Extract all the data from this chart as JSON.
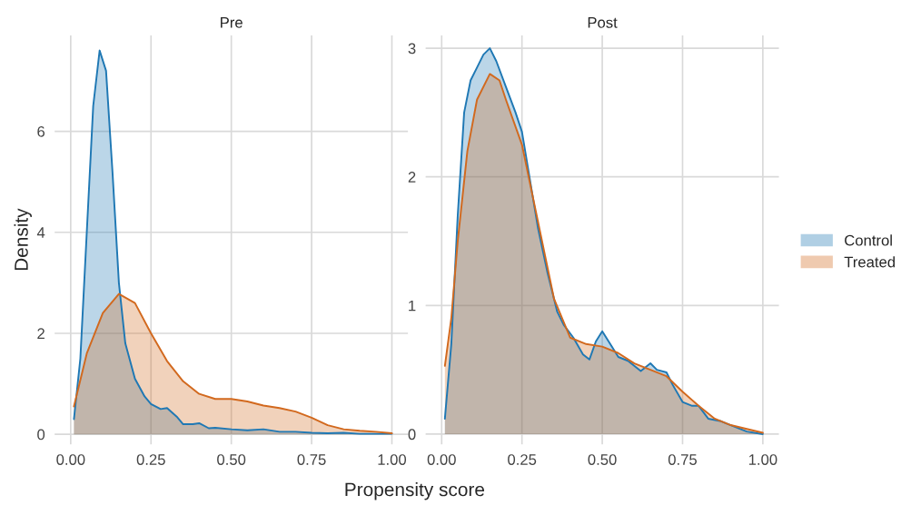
{
  "chart_data": [
    {
      "type": "area",
      "title": "Pre",
      "ylabel": "Density",
      "xlabel": "Propensity score",
      "xlim": [
        -0.05,
        1.05
      ],
      "ylim": [
        -0.2,
        7.9
      ],
      "xticks": [
        {
          "value": 0,
          "label": "0.00"
        },
        {
          "value": 0.25,
          "label": "0.25"
        },
        {
          "value": 0.5,
          "label": "0.50"
        },
        {
          "value": 0.75,
          "label": "0.75"
        },
        {
          "value": 1,
          "label": "1.00"
        }
      ],
      "yticks": [
        0,
        2,
        4,
        6
      ],
      "grid": true,
      "legend": "right",
      "series": [
        {
          "name": "Control",
          "color": "#1f78b4",
          "x": [
            0.01,
            0.03,
            0.05,
            0.07,
            0.09,
            0.11,
            0.13,
            0.15,
            0.17,
            0.2,
            0.23,
            0.25,
            0.28,
            0.3,
            0.33,
            0.35,
            0.38,
            0.4,
            0.43,
            0.45,
            0.5,
            0.55,
            0.6,
            0.65,
            0.7,
            0.75,
            0.8,
            0.85,
            0.9,
            1.0
          ],
          "values": [
            0.3,
            1.5,
            4.0,
            6.5,
            7.6,
            7.2,
            5.2,
            3.0,
            1.8,
            1.1,
            0.75,
            0.6,
            0.5,
            0.52,
            0.35,
            0.2,
            0.2,
            0.22,
            0.12,
            0.13,
            0.1,
            0.08,
            0.1,
            0.05,
            0.05,
            0.03,
            0.02,
            0.03,
            0.01,
            0.01
          ]
        },
        {
          "name": "Treated",
          "color": "#d2691e",
          "x": [
            0.01,
            0.05,
            0.1,
            0.15,
            0.2,
            0.25,
            0.3,
            0.35,
            0.4,
            0.45,
            0.5,
            0.55,
            0.6,
            0.65,
            0.7,
            0.75,
            0.8,
            0.85,
            0.9,
            0.95,
            1.0
          ],
          "values": [
            0.55,
            1.6,
            2.4,
            2.78,
            2.6,
            2.0,
            1.45,
            1.05,
            0.8,
            0.7,
            0.7,
            0.65,
            0.57,
            0.52,
            0.45,
            0.33,
            0.18,
            0.1,
            0.07,
            0.05,
            0.02
          ]
        }
      ]
    },
    {
      "type": "area",
      "title": "Post",
      "xlim": [
        -0.05,
        1.05
      ],
      "ylim": [
        -0.08,
        3.1
      ],
      "xticks": [
        {
          "value": 0,
          "label": "0.00"
        },
        {
          "value": 0.25,
          "label": "0.25"
        },
        {
          "value": 0.5,
          "label": "0.50"
        },
        {
          "value": 0.75,
          "label": "0.75"
        },
        {
          "value": 1,
          "label": "1.00"
        }
      ],
      "yticks": [
        0,
        1,
        2,
        3
      ],
      "grid": true,
      "series": [
        {
          "color": "#1f78b4",
          "x": [
            0.01,
            0.03,
            0.05,
            0.07,
            0.09,
            0.11,
            0.13,
            0.15,
            0.17,
            0.2,
            0.23,
            0.25,
            0.28,
            0.3,
            0.33,
            0.36,
            0.38,
            0.41,
            0.44,
            0.46,
            0.48,
            0.5,
            0.52,
            0.55,
            0.58,
            0.62,
            0.65,
            0.67,
            0.7,
            0.72,
            0.75,
            0.78,
            0.8,
            0.83,
            0.87,
            0.9,
            0.95,
            1.0
          ],
          "values": [
            0.12,
            0.7,
            1.7,
            2.5,
            2.75,
            2.85,
            2.95,
            3.0,
            2.9,
            2.7,
            2.5,
            2.35,
            1.9,
            1.6,
            1.25,
            0.95,
            0.85,
            0.75,
            0.62,
            0.58,
            0.72,
            0.8,
            0.72,
            0.6,
            0.57,
            0.49,
            0.55,
            0.5,
            0.48,
            0.38,
            0.25,
            0.22,
            0.22,
            0.12,
            0.1,
            0.07,
            0.02,
            0.0
          ]
        },
        {
          "color": "#d2691e",
          "x": [
            0.01,
            0.03,
            0.05,
            0.08,
            0.11,
            0.15,
            0.18,
            0.2,
            0.25,
            0.3,
            0.35,
            0.4,
            0.45,
            0.5,
            0.55,
            0.6,
            0.65,
            0.7,
            0.75,
            0.8,
            0.85,
            0.9,
            0.95,
            1.0
          ],
          "values": [
            0.53,
            0.9,
            1.5,
            2.2,
            2.6,
            2.8,
            2.75,
            2.6,
            2.25,
            1.65,
            1.05,
            0.75,
            0.7,
            0.68,
            0.63,
            0.55,
            0.5,
            0.45,
            0.33,
            0.22,
            0.12,
            0.07,
            0.04,
            0.01
          ]
        }
      ]
    }
  ]
}
